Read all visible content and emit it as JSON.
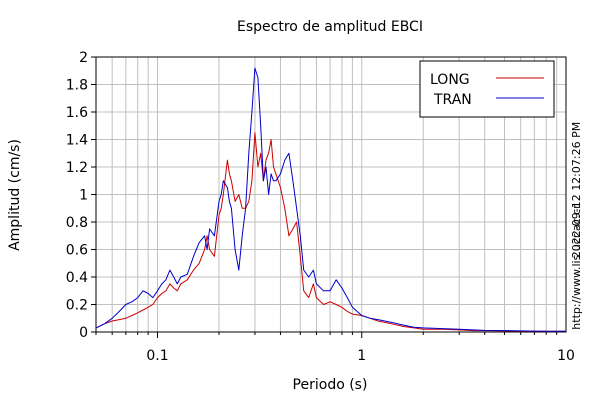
{
  "chart_data": {
    "type": "line",
    "title": "Espectro de amplitud EBCI",
    "xlabel": "Periodo (s)",
    "ylabel": "Amplitud (cm/s)",
    "xscale": "log",
    "xlim": [
      0.05,
      10
    ],
    "ylim": [
      0,
      2
    ],
    "grid": true,
    "legend_position": "top-right",
    "x_tick_labels": [
      {
        "value": 0.1,
        "label": "0.1"
      },
      {
        "value": 1,
        "label": "1"
      },
      {
        "value": 10,
        "label": "10"
      }
    ],
    "y_tick_labels": [
      {
        "value": 0,
        "label": "0"
      },
      {
        "value": 0.2,
        "label": "0.2"
      },
      {
        "value": 0.4,
        "label": "0.4"
      },
      {
        "value": 0.6,
        "label": "0.6"
      },
      {
        "value": 0.8,
        "label": "0.8"
      },
      {
        "value": 1,
        "label": "1"
      },
      {
        "value": 1.2,
        "label": "1.2"
      },
      {
        "value": 1.4,
        "label": "1.4"
      },
      {
        "value": 1.6,
        "label": "1.6"
      },
      {
        "value": 1.8,
        "label": "1.8"
      },
      {
        "value": 2,
        "label": "2"
      }
    ],
    "series": [
      {
        "name": "LONG",
        "color": "#cc0000",
        "x": [
          0.05,
          0.055,
          0.06,
          0.065,
          0.07,
          0.075,
          0.08,
          0.085,
          0.09,
          0.095,
          0.1,
          0.105,
          0.11,
          0.115,
          0.12,
          0.125,
          0.13,
          0.14,
          0.15,
          0.16,
          0.17,
          0.175,
          0.18,
          0.19,
          0.2,
          0.205,
          0.21,
          0.22,
          0.225,
          0.23,
          0.24,
          0.25,
          0.26,
          0.27,
          0.28,
          0.29,
          0.3,
          0.31,
          0.32,
          0.33,
          0.34,
          0.35,
          0.36,
          0.37,
          0.38,
          0.4,
          0.42,
          0.44,
          0.46,
          0.48,
          0.5,
          0.52,
          0.55,
          0.58,
          0.6,
          0.65,
          0.7,
          0.75,
          0.8,
          0.85,
          0.9,
          1.0,
          1.1,
          1.2,
          1.4,
          1.6,
          1.8,
          2.0,
          2.5,
          3.0,
          3.5,
          4.0,
          5.0,
          6.0,
          8.0,
          10.0
        ],
        "y": [
          0.03,
          0.06,
          0.08,
          0.09,
          0.1,
          0.12,
          0.14,
          0.16,
          0.18,
          0.2,
          0.25,
          0.28,
          0.3,
          0.35,
          0.32,
          0.3,
          0.35,
          0.38,
          0.45,
          0.5,
          0.6,
          0.7,
          0.6,
          0.55,
          0.85,
          0.9,
          1.0,
          1.25,
          1.15,
          1.1,
          0.95,
          1.0,
          0.9,
          0.9,
          0.95,
          1.1,
          1.45,
          1.2,
          1.3,
          1.1,
          1.25,
          1.3,
          1.4,
          1.2,
          1.15,
          1.05,
          0.9,
          0.7,
          0.75,
          0.8,
          0.55,
          0.3,
          0.25,
          0.35,
          0.25,
          0.2,
          0.22,
          0.2,
          0.18,
          0.15,
          0.13,
          0.12,
          0.1,
          0.08,
          0.06,
          0.04,
          0.03,
          0.02,
          0.02,
          0.015,
          0.01,
          0.01,
          0.008,
          0.006,
          0.005,
          0.005
        ]
      },
      {
        "name": "TRAN",
        "color": "#0000cc",
        "x": [
          0.05,
          0.055,
          0.06,
          0.065,
          0.07,
          0.075,
          0.08,
          0.085,
          0.09,
          0.095,
          0.1,
          0.105,
          0.11,
          0.115,
          0.12,
          0.125,
          0.13,
          0.14,
          0.15,
          0.16,
          0.17,
          0.175,
          0.18,
          0.19,
          0.2,
          0.205,
          0.21,
          0.22,
          0.225,
          0.23,
          0.24,
          0.25,
          0.26,
          0.27,
          0.28,
          0.29,
          0.3,
          0.31,
          0.32,
          0.33,
          0.34,
          0.35,
          0.36,
          0.37,
          0.38,
          0.4,
          0.42,
          0.44,
          0.46,
          0.48,
          0.5,
          0.52,
          0.55,
          0.58,
          0.6,
          0.65,
          0.7,
          0.75,
          0.8,
          0.85,
          0.9,
          1.0,
          1.1,
          1.2,
          1.4,
          1.6,
          1.8,
          2.0,
          2.5,
          3.0,
          3.5,
          4.0,
          5.0,
          6.0,
          8.0,
          10.0
        ],
        "y": [
          0.03,
          0.06,
          0.1,
          0.15,
          0.2,
          0.22,
          0.25,
          0.3,
          0.28,
          0.25,
          0.3,
          0.35,
          0.38,
          0.45,
          0.4,
          0.35,
          0.4,
          0.42,
          0.55,
          0.65,
          0.7,
          0.6,
          0.75,
          0.7,
          0.95,
          1.0,
          1.1,
          1.05,
          0.95,
          0.9,
          0.6,
          0.45,
          0.7,
          0.9,
          1.3,
          1.6,
          1.92,
          1.85,
          1.5,
          1.1,
          1.2,
          1.0,
          1.15,
          1.1,
          1.1,
          1.15,
          1.25,
          1.3,
          1.1,
          0.9,
          0.7,
          0.45,
          0.4,
          0.45,
          0.35,
          0.3,
          0.3,
          0.38,
          0.32,
          0.25,
          0.18,
          0.12,
          0.1,
          0.09,
          0.07,
          0.05,
          0.035,
          0.03,
          0.025,
          0.02,
          0.015,
          0.012,
          0.01,
          0.008,
          0.006,
          0.005
        ]
      }
    ]
  },
  "side_labels": {
    "url": "http://www.lis.ucr.ac.cr",
    "timestamp": "2022-09-12 12:07:26 PM"
  }
}
